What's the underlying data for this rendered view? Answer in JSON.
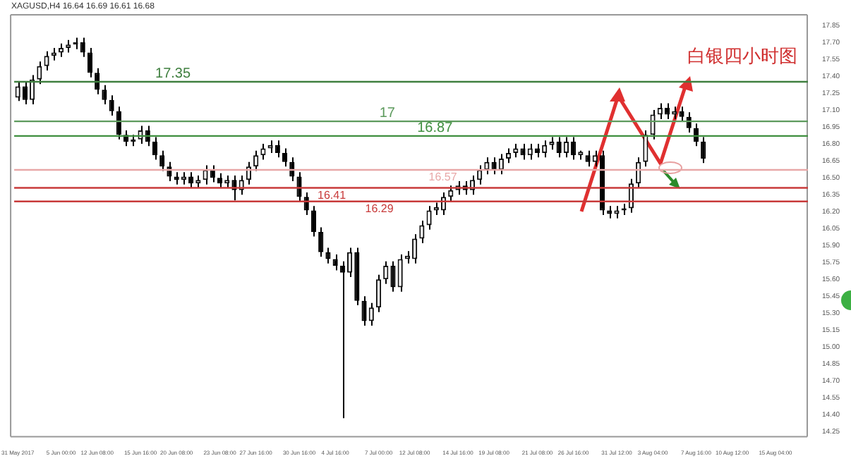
{
  "chart_data": {
    "type": "candlestick",
    "title": "XAGUSD,H4 16.64 16.69 16.61 16.68",
    "categories": [
      "31 May 2017",
      null,
      null,
      null,
      null,
      null,
      "5 Jun 00:00",
      null,
      null,
      null,
      null,
      "12 Jun 08:00",
      null,
      null,
      null,
      null,
      null,
      "15 Jun 16:00",
      null,
      null,
      null,
      null,
      "20 Jun 08:00",
      null,
      null,
      null,
      null,
      null,
      "23 Jun 08:00",
      null,
      null,
      null,
      null,
      "27 Jun 16:00",
      null,
      null,
      null,
      null,
      null,
      "30 Jun 16:00",
      null,
      null,
      null,
      null,
      "4 Jul 16:00",
      null,
      null,
      null,
      null,
      null,
      "7 Jul 00:00",
      null,
      null,
      null,
      null,
      "12 Jul 08:00",
      null,
      null,
      null,
      null,
      null,
      "14 Jul 16:00",
      null,
      null,
      null,
      null,
      "19 Jul 08:00",
      null,
      null,
      null,
      null,
      null,
      "21 Jul 08:00",
      null,
      null,
      null,
      null,
      "26 Jul 16:00",
      null,
      null,
      null,
      null,
      null,
      "31 Jul 12:00",
      null,
      null,
      null,
      null,
      "3 Aug 04:00",
      null,
      null,
      null,
      null,
      null,
      "7 Aug 16:00",
      null,
      null,
      null,
      null,
      "10 Aug 12:00",
      null,
      null,
      null,
      null,
      null,
      "15 Aug 04:00",
      null,
      null,
      null,
      null
    ],
    "ohlc": [
      [
        17.21,
        17.35,
        17.18,
        17.31
      ],
      [
        17.31,
        17.35,
        17.15,
        17.19
      ],
      [
        17.19,
        17.41,
        17.15,
        17.37
      ],
      [
        17.37,
        17.53,
        17.33,
        17.49
      ],
      [
        17.49,
        17.62,
        17.45,
        17.58
      ],
      [
        17.58,
        17.65,
        17.54,
        17.61
      ],
      [
        17.61,
        17.69,
        17.57,
        17.65
      ],
      [
        17.65,
        17.72,
        17.61,
        17.68
      ],
      [
        17.68,
        17.74,
        17.64,
        17.7
      ],
      [
        17.7,
        17.74,
        17.57,
        17.61
      ],
      [
        17.61,
        17.65,
        17.39,
        17.43
      ],
      [
        17.43,
        17.47,
        17.24,
        17.28
      ],
      [
        17.28,
        17.32,
        17.15,
        17.19
      ],
      [
        17.19,
        17.23,
        17.05,
        17.09
      ],
      [
        17.09,
        17.13,
        16.84,
        16.88
      ],
      [
        16.88,
        16.92,
        16.78,
        16.82
      ],
      [
        16.82,
        16.88,
        16.78,
        16.84
      ],
      [
        16.84,
        16.96,
        16.8,
        16.92
      ],
      [
        16.92,
        16.96,
        16.78,
        16.82
      ],
      [
        16.82,
        16.86,
        16.66,
        16.7
      ],
      [
        16.7,
        16.74,
        16.56,
        16.6
      ],
      [
        16.6,
        16.64,
        16.47,
        16.51
      ],
      [
        16.51,
        16.55,
        16.44,
        16.48
      ],
      [
        16.48,
        16.55,
        16.44,
        16.51
      ],
      [
        16.51,
        16.55,
        16.41,
        16.45
      ],
      [
        16.45,
        16.52,
        16.41,
        16.48
      ],
      [
        16.48,
        16.61,
        16.44,
        16.57
      ],
      [
        16.57,
        16.61,
        16.46,
        16.5
      ],
      [
        16.5,
        16.54,
        16.41,
        16.45
      ],
      [
        16.45,
        16.52,
        16.41,
        16.48
      ],
      [
        16.48,
        16.52,
        16.3,
        16.39
      ],
      [
        16.39,
        16.52,
        16.35,
        16.48
      ],
      [
        16.48,
        16.64,
        16.44,
        16.6
      ],
      [
        16.6,
        16.74,
        16.56,
        16.7
      ],
      [
        16.7,
        16.8,
        16.66,
        16.76
      ],
      [
        16.76,
        16.83,
        16.72,
        16.79
      ],
      [
        16.79,
        16.83,
        16.68,
        16.72
      ],
      [
        16.72,
        16.76,
        16.6,
        16.64
      ],
      [
        16.64,
        16.68,
        16.47,
        16.51
      ],
      [
        16.51,
        16.55,
        16.29,
        16.33
      ],
      [
        16.33,
        16.37,
        16.17,
        16.21
      ],
      [
        16.21,
        16.25,
        15.98,
        16.02
      ],
      [
        16.02,
        16.06,
        15.8,
        15.84
      ],
      [
        15.84,
        15.88,
        15.74,
        15.78
      ],
      [
        15.78,
        15.82,
        15.68,
        15.72
      ],
      [
        15.72,
        15.76,
        14.37,
        15.66
      ],
      [
        15.66,
        15.88,
        15.62,
        15.84
      ],
      [
        15.84,
        15.88,
        15.37,
        15.41
      ],
      [
        15.41,
        15.45,
        15.19,
        15.23
      ],
      [
        15.23,
        15.39,
        15.19,
        15.35
      ],
      [
        15.35,
        15.64,
        15.31,
        15.6
      ],
      [
        15.6,
        15.76,
        15.56,
        15.72
      ],
      [
        15.72,
        15.76,
        15.49,
        15.53
      ],
      [
        15.53,
        15.82,
        15.49,
        15.78
      ],
      [
        15.78,
        15.85,
        15.74,
        15.81
      ],
      [
        15.78,
        16.0,
        15.74,
        15.96
      ],
      [
        15.96,
        16.12,
        15.92,
        16.08
      ],
      [
        16.08,
        16.25,
        16.04,
        16.21
      ],
      [
        16.21,
        16.28,
        16.17,
        16.24
      ],
      [
        16.21,
        16.37,
        16.17,
        16.33
      ],
      [
        16.33,
        16.43,
        16.29,
        16.39
      ],
      [
        16.39,
        16.47,
        16.35,
        16.43
      ],
      [
        16.43,
        16.47,
        16.35,
        16.39
      ],
      [
        16.39,
        16.52,
        16.35,
        16.48
      ],
      [
        16.48,
        16.61,
        16.44,
        16.57
      ],
      [
        16.57,
        16.68,
        16.53,
        16.64
      ],
      [
        16.64,
        16.68,
        16.53,
        16.57
      ],
      [
        16.57,
        16.71,
        16.53,
        16.67
      ],
      [
        16.67,
        16.76,
        16.63,
        16.72
      ],
      [
        16.72,
        16.8,
        16.68,
        16.76
      ],
      [
        16.76,
        16.8,
        16.66,
        16.7
      ],
      [
        16.7,
        16.8,
        16.66,
        16.76
      ],
      [
        16.76,
        16.8,
        16.68,
        16.72
      ],
      [
        16.72,
        16.83,
        16.68,
        16.79
      ],
      [
        16.79,
        16.86,
        16.75,
        16.82
      ],
      [
        16.82,
        16.86,
        16.68,
        16.72
      ],
      [
        16.72,
        16.86,
        16.68,
        16.82
      ],
      [
        16.82,
        16.86,
        16.66,
        16.7
      ],
      [
        16.7,
        16.74,
        16.66,
        16.73
      ],
      [
        16.7,
        16.74,
        16.6,
        16.64
      ],
      [
        16.64,
        16.74,
        16.6,
        16.7
      ],
      [
        16.7,
        16.74,
        16.17,
        16.21
      ],
      [
        16.21,
        16.25,
        16.14,
        16.18
      ],
      [
        16.18,
        16.25,
        16.14,
        16.21
      ],
      [
        16.21,
        16.27,
        16.17,
        16.23
      ],
      [
        16.23,
        16.49,
        16.19,
        16.45
      ],
      [
        16.45,
        16.68,
        16.41,
        16.64
      ],
      [
        16.64,
        16.92,
        16.6,
        16.88
      ],
      [
        16.88,
        17.1,
        16.84,
        17.06
      ],
      [
        17.06,
        17.16,
        17.02,
        17.12
      ],
      [
        17.12,
        17.16,
        17.02,
        17.06
      ],
      [
        17.06,
        17.13,
        17.02,
        17.09
      ],
      [
        17.09,
        17.13,
        17.0,
        17.04
      ],
      [
        17.04,
        17.08,
        16.9,
        16.94
      ],
      [
        16.94,
        16.98,
        16.78,
        16.82
      ],
      [
        16.82,
        16.86,
        16.63,
        16.67
      ],
      null,
      null,
      null,
      null,
      null,
      null,
      null,
      null,
      null,
      null,
      null,
      null,
      null,
      null
    ],
    "ylim": [
      14.2,
      17.95
    ],
    "yticks": [
      14.25,
      {
        "value": 14.4,
        "label": "14.40"
      },
      14.55,
      {
        "value": 14.7,
        "label": "14.70"
      },
      14.85,
      {
        "value": 15,
        "label": "15.00"
      },
      15.15,
      {
        "value": 15.3,
        "label": "15.30"
      },
      15.45,
      {
        "value": 15.6,
        "label": "15.60"
      },
      15.75,
      {
        "value": 15.9,
        "label": "15.90"
      },
      16.05,
      {
        "value": 16.2,
        "label": "16.20"
      },
      16.35,
      {
        "value": 16.5,
        "label": "16.50"
      },
      16.65,
      {
        "value": 16.8,
        "label": "16.80"
      },
      16.95,
      {
        "value": 17.1,
        "label": "17.10"
      },
      17.25,
      {
        "value": 17.4,
        "label": "17.40"
      },
      17.55,
      {
        "value": 17.7,
        "label": "17.70"
      },
      17.85
    ],
    "grid": false,
    "ref_lines": [
      {
        "axis": "y",
        "value": 17.35,
        "label": "17.35",
        "color": "#3f7f3f"
      },
      {
        "axis": "y",
        "value": 17,
        "label": "17",
        "color": "#5c9a5c"
      },
      {
        "axis": "y",
        "value": 16.87,
        "label": "16.87",
        "color": "#3f8f3f"
      },
      {
        "axis": "y",
        "value": 16.57,
        "label": "16.57",
        "color": "#e8a8a8"
      },
      {
        "axis": "y",
        "value": 16.41,
        "label": "16.41",
        "color": "#c83a3a"
      },
      {
        "axis": "y",
        "value": 16.29,
        "label": "16.29",
        "color": "#c83a3a"
      }
    ],
    "annotations": [
      "白银四小时图"
    ]
  }
}
